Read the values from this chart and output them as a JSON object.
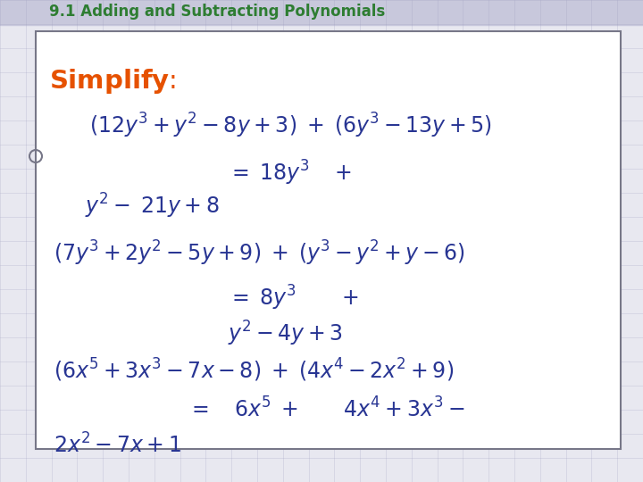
{
  "title": "9.1 Adding and Subtracting Polynomials",
  "title_color": "#2E7D32",
  "title_fontsize": 12,
  "simplify_color": "#E65100",
  "math_color": "#283593",
  "bg_color": "#E8E8F0",
  "grid_color": "#9999BB",
  "box_edge_color": "#777788",
  "box_bg": "#FFFFFF",
  "circle_color": "#777788"
}
